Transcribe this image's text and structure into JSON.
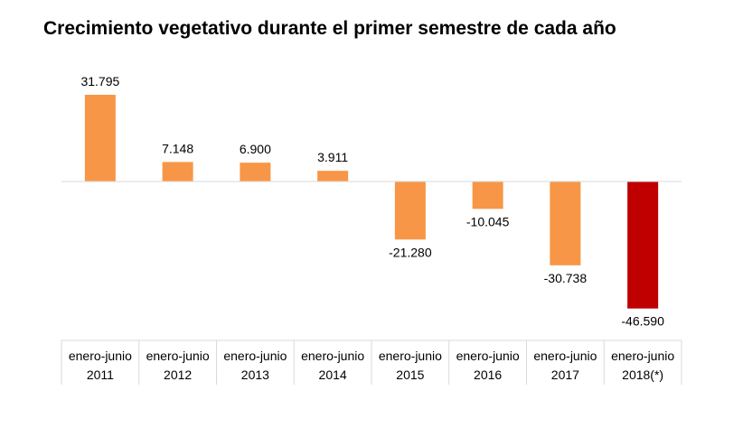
{
  "chart_data": {
    "type": "bar",
    "title": "Crecimiento vegetativo durante el primer semestre de cada año",
    "categories": [
      [
        "enero-junio",
        "2011"
      ],
      [
        "enero-junio",
        "2012"
      ],
      [
        "enero-junio",
        "2013"
      ],
      [
        "enero-junio",
        "2014"
      ],
      [
        "enero-junio",
        "2015"
      ],
      [
        "enero-junio",
        "2016"
      ],
      [
        "enero-junio",
        "2017"
      ],
      [
        "enero-junio",
        "2018(*)"
      ]
    ],
    "values": [
      31795,
      7148,
      6900,
      3911,
      -21280,
      -10045,
      -30738,
      -46590
    ],
    "data_labels": [
      "31.795",
      "7.148",
      "6.900",
      "3.911",
      "-21.280",
      "-10.045",
      "-30.738",
      "-46.590"
    ],
    "bar_colors": [
      "#F79646",
      "#F79646",
      "#F79646",
      "#F79646",
      "#F79646",
      "#F79646",
      "#F79646",
      "#C00000"
    ],
    "xlabel": "",
    "ylabel": "",
    "ylim": [
      -46590,
      31795
    ],
    "grid": false,
    "legend": "none"
  }
}
